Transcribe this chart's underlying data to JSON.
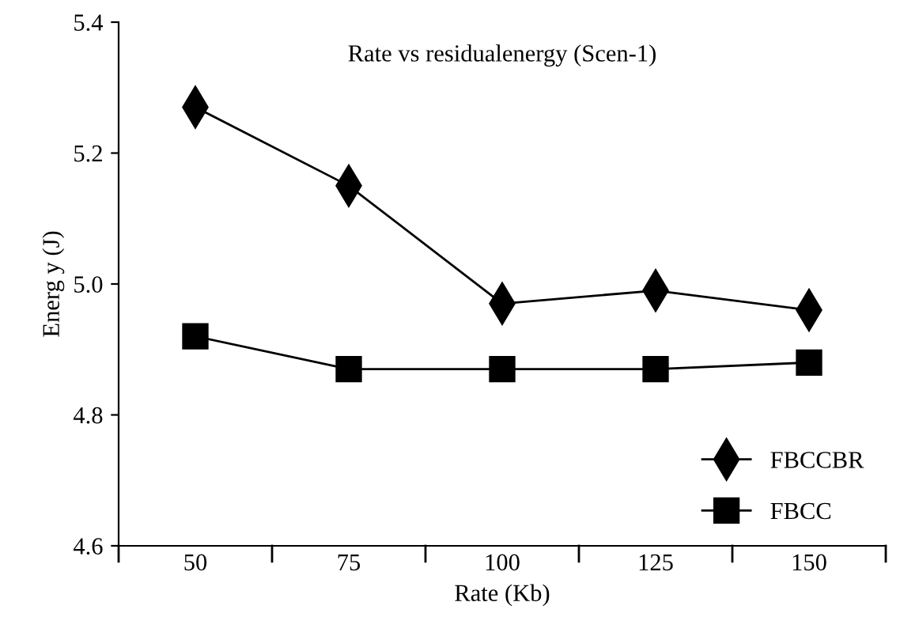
{
  "chart_data": {
    "type": "line",
    "title": "Rate vs residualenergy (Scen-1)",
    "xlabel": "Rate (Kb)",
    "ylabel": "Energ y (J)",
    "categories": [
      "50",
      "75",
      "100",
      "125",
      "150"
    ],
    "series": [
      {
        "name": "FBCCBR",
        "color": "#000000",
        "marker": "diamond",
        "values": [
          5.27,
          5.15,
          4.97,
          4.99,
          4.96
        ]
      },
      {
        "name": "FBCC",
        "color": "#000000",
        "marker": "square",
        "values": [
          4.92,
          4.87,
          4.87,
          4.87,
          4.88
        ]
      }
    ],
    "ylim": [
      4.6,
      5.4
    ],
    "yticks": [
      {
        "value": 4.6,
        "label": "4.6"
      },
      {
        "value": 4.8,
        "label": "4.8"
      },
      {
        "value": 5.0,
        "label": "5.0"
      },
      {
        "value": 5.2,
        "label": "5.2"
      },
      {
        "value": 5.4,
        "label": "5.4"
      }
    ],
    "grid": false,
    "legend": "bottom right",
    "line_style": "solid"
  }
}
